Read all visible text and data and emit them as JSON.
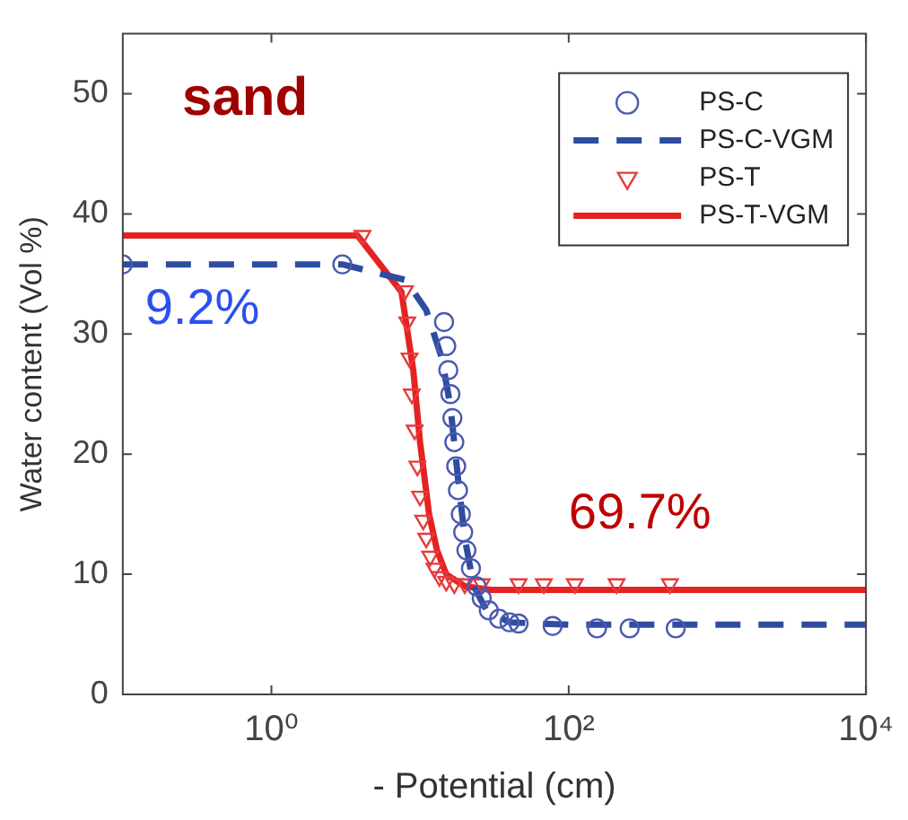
{
  "chart_data": {
    "type": "scatter",
    "xlabel": "- Potential (cm)",
    "ylabel": "Water content (Vol %)",
    "log": "x",
    "xlim": [
      0.1,
      10000
    ],
    "xticks": [
      {
        "value": 1,
        "label": "10⁰"
      },
      {
        "value": 100,
        "label": "10²"
      },
      {
        "value": 10000,
        "label": "10⁴"
      }
    ],
    "ylim": [
      0,
      55
    ],
    "yticks": [
      0,
      10,
      20,
      30,
      40,
      50
    ],
    "grid": false,
    "legend": "top right",
    "annotations": [
      "sand",
      "9.2%",
      "69.7%"
    ],
    "series": [
      {
        "name": "PS-C",
        "marker": "circle",
        "color": "#4a5ab0",
        "x": [
          0.1,
          3.0,
          14.5,
          15,
          15.5,
          16,
          16.5,
          17,
          17.5,
          18,
          18.8,
          19.5,
          20.5,
          22,
          24,
          26,
          29,
          34,
          40,
          46,
          78,
          155,
          257,
          525
        ],
        "values": [
          35.8,
          35.8,
          31,
          29,
          27,
          25,
          23,
          21,
          19,
          17,
          15,
          13.5,
          12,
          10.5,
          9,
          8,
          7,
          6.3,
          6,
          5.9,
          5.7,
          5.5,
          5.5,
          5.5
        ]
      },
      {
        "name": "PS-C-VGM",
        "type": "line",
        "marker": "none",
        "line_style": "dashed",
        "color": "#2e4da0",
        "x": [
          0.1,
          3,
          8,
          11,
          14,
          16,
          18,
          20,
          23,
          28,
          40,
          100,
          10000
        ],
        "values": [
          35.8,
          35.8,
          34.5,
          32,
          28,
          24,
          18,
          13,
          9,
          7,
          6,
          5.8,
          5.8
        ]
      },
      {
        "name": "PS-T",
        "marker": "triangle",
        "color": "#e83a3a",
        "x": [
          4.1,
          7.9,
          8.2,
          8.5,
          8.8,
          9.2,
          9.6,
          10,
          10.5,
          11,
          11.7,
          12.5,
          13.5,
          15,
          17,
          20,
          26,
          46,
          68,
          110,
          210,
          480
        ],
        "values": [
          38.2,
          33.6,
          31,
          28,
          25,
          22,
          19,
          16.5,
          14.5,
          13,
          11.5,
          10.5,
          9.8,
          9.4,
          9.2,
          9.2,
          9.2,
          9.2,
          9.2,
          9.2,
          9.2,
          9.2
        ]
      },
      {
        "name": "PS-T-VGM",
        "type": "line",
        "marker": "none",
        "line_style": "solid",
        "color": "#e42222",
        "x": [
          0.1,
          3.8,
          7.5,
          9,
          10,
          11.5,
          13,
          15,
          20,
          30,
          10000
        ],
        "values": [
          38.2,
          38.2,
          33.5,
          27,
          21,
          15,
          12,
          10,
          9,
          8.7,
          8.7
        ]
      }
    ]
  }
}
